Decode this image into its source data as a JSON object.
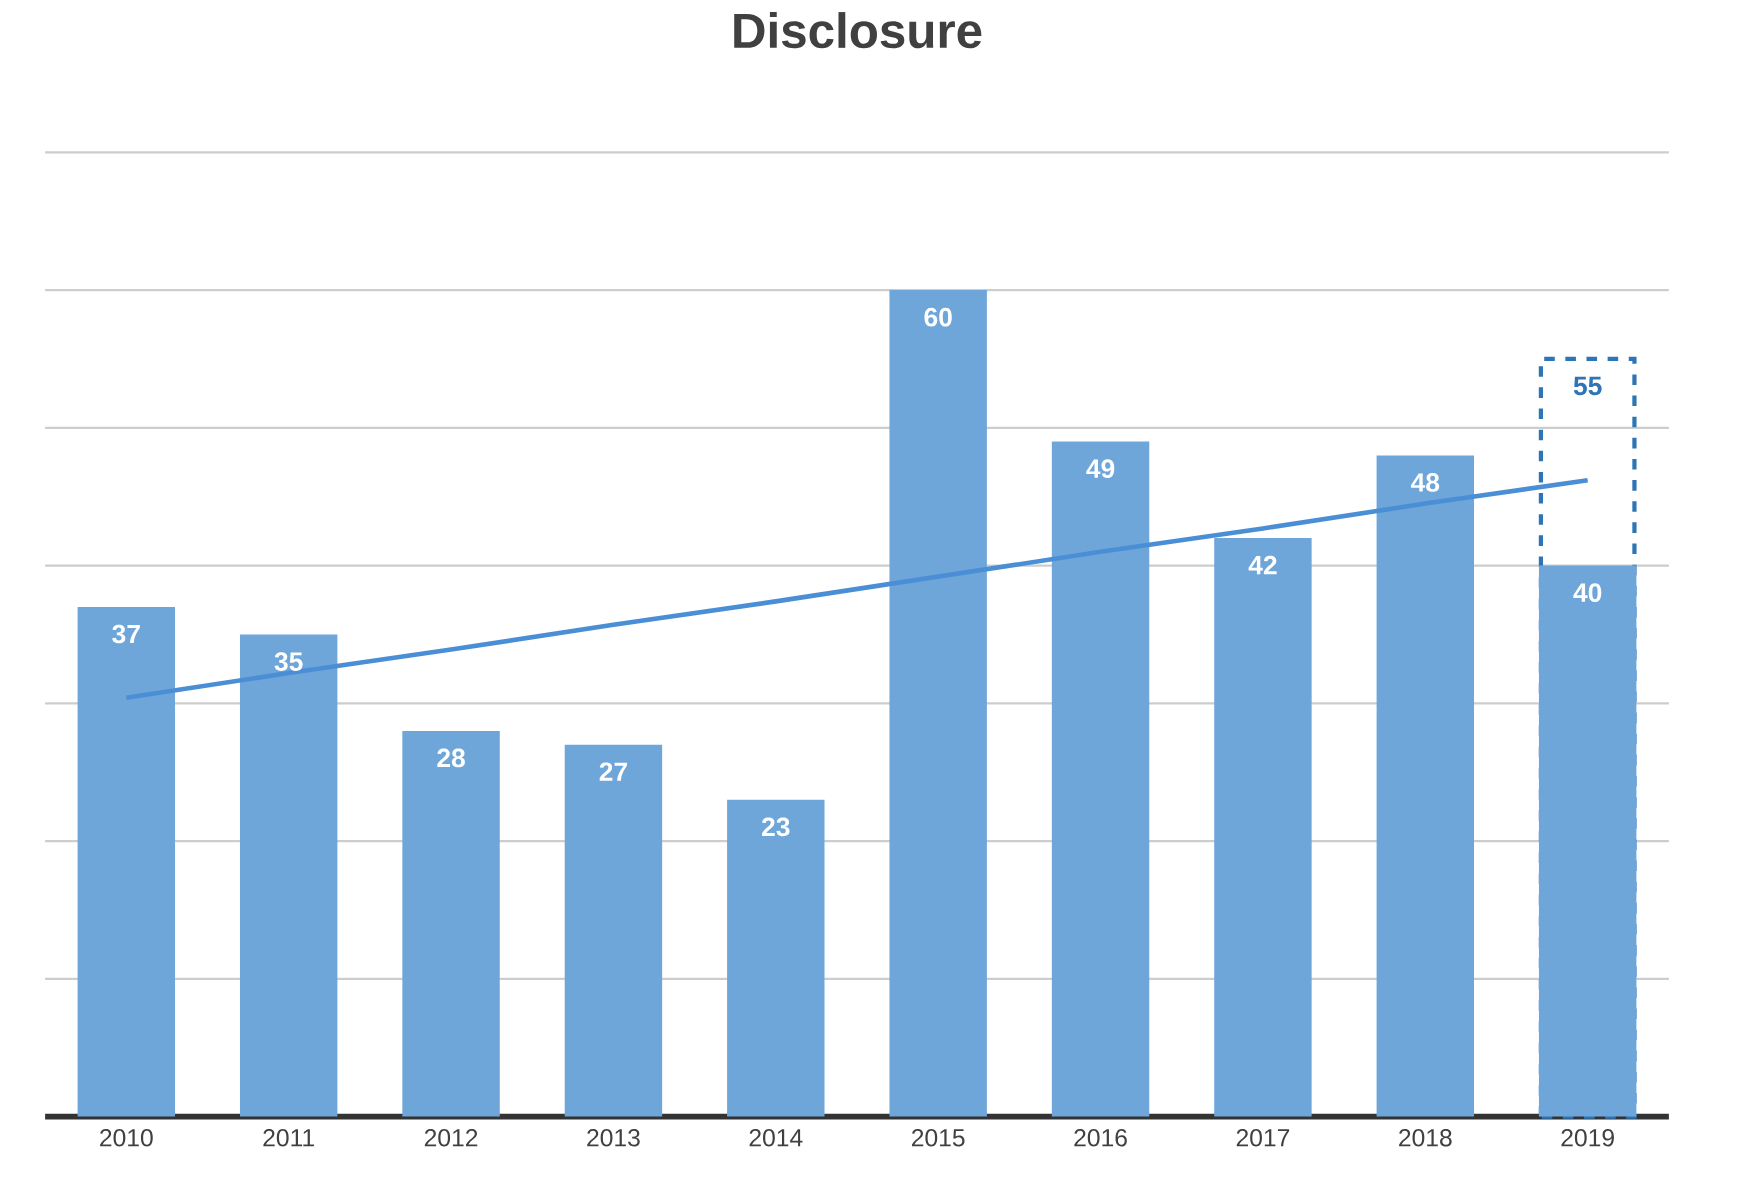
{
  "chart_data": {
    "type": "bar",
    "title": "Disclosure",
    "categories": [
      "2010",
      "2011",
      "2012",
      "2013",
      "2014",
      "2015",
      "2016",
      "2017",
      "2018",
      "2019"
    ],
    "series": [
      {
        "color": "#2e75b6",
        "line_style": "dashed",
        "values": [
          null,
          null,
          null,
          null,
          null,
          null,
          null,
          null,
          null,
          55
        ],
        "value_labels": [
          null,
          null,
          null,
          null,
          null,
          null,
          null,
          null,
          null,
          "55"
        ]
      },
      {
        "color": "#6fa6da",
        "values": [
          37,
          35,
          28,
          27,
          23,
          60,
          49,
          42,
          48,
          40
        ],
        "value_labels": [
          "37",
          "35",
          "28",
          "27",
          "23",
          "60",
          "49",
          "42",
          "48",
          "40"
        ]
      },
      {
        "type": "line",
        "color": "#4a8fd6",
        "values": [
          30.4,
          32.2,
          33.9,
          35.7,
          37.4,
          39.2,
          41.0,
          42.7,
          44.5,
          46.2
        ]
      }
    ],
    "ylim": [
      0,
      70
    ],
    "yticks": [
      {
        "value": 0,
        "label": null
      },
      {
        "value": 10,
        "label": null
      },
      {
        "value": 20,
        "label": null
      },
      {
        "value": 30,
        "label": null
      },
      {
        "value": 40,
        "label": null
      },
      {
        "value": 50,
        "label": null
      },
      {
        "value": 60,
        "label": null
      },
      {
        "value": 70,
        "label": null
      }
    ],
    "grid": "y",
    "tick_labels": "x"
  }
}
